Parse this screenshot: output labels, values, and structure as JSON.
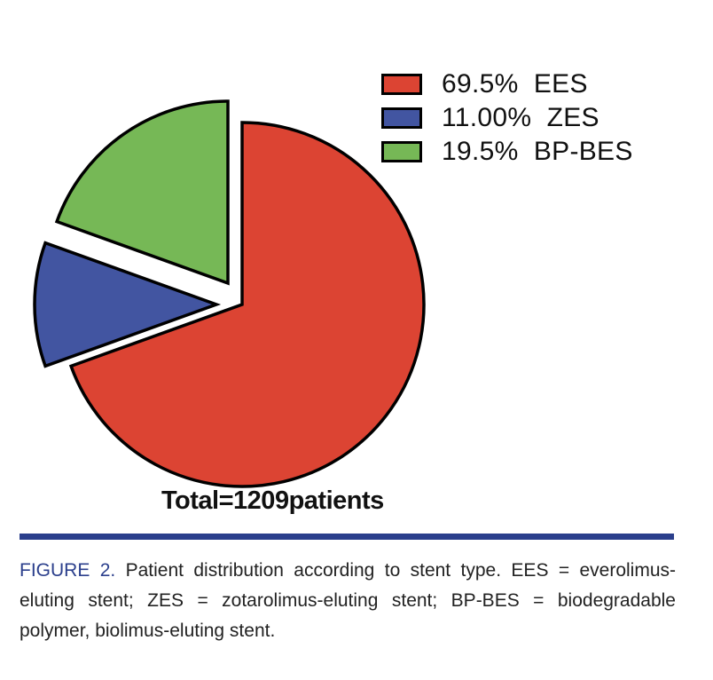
{
  "chart_data": {
    "type": "pie",
    "title": "",
    "categories": [
      "EES",
      "ZES",
      "BP-BES"
    ],
    "values": [
      69.5,
      11.0,
      19.5
    ],
    "unit": "%",
    "colors": [
      "#dc4433",
      "#4255a1",
      "#76b856"
    ],
    "exploded": [
      false,
      true,
      true
    ],
    "legend": {
      "position": "top-right",
      "entries": [
        "69.5%  EES",
        "11.00%  ZES",
        "19.5%  BP-BES"
      ]
    },
    "annotations": [
      "Total=1209patients"
    ],
    "total_patients": 1209
  },
  "figure": {
    "total_label": "Total=1209patients",
    "rule_color": "#2b3f8c",
    "caption_lead": "FIGURE 2.",
    "caption_text": " Patient distribution according to stent type. EES = everolimus-eluting stent; ZES = zotarolimus-eluting stent; BP-BES = biodegradable polymer, biolimus-eluting stent."
  }
}
